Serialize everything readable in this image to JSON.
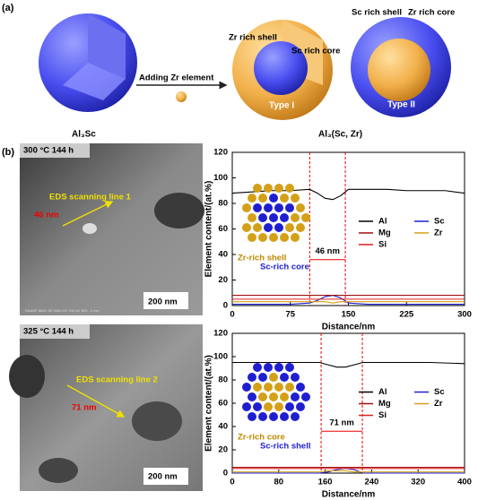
{
  "panel_a": {
    "label": "(a)",
    "left_caption": "Al₃Sc",
    "right_caption": "Al₃(Sc, Zr)",
    "arrow_text": "Adding Zr element",
    "type1": {
      "name": "Type I",
      "shell": "Zr rich shell",
      "core": "Sc rich core"
    },
    "type2": {
      "name": "Type II",
      "shell": "Sc rich shell",
      "core": "Zr rich core"
    }
  },
  "panel_b": {
    "label": "(b)",
    "images": [
      {
        "title": "300 °C 144 h",
        "line_label": "EDS scanning line 1",
        "size_label": "46 nm",
        "scale_bar": "200 nm",
        "footer": "HAADF MAG: 80 000x HV: 200 kV WD: -1 mm"
      },
      {
        "title": "325 °C 144 h",
        "line_label": "EDS scanning line 2",
        "size_label": "71 nm",
        "scale_bar": "200 nm"
      }
    ]
  },
  "chart_data": [
    {
      "type": "line",
      "xlabel": "Distance/nm",
      "ylabel": "Element content/(at.%)",
      "xlim": [
        0,
        300
      ],
      "xticks": [
        0,
        75,
        150,
        225,
        300
      ],
      "ylim": [
        0,
        120
      ],
      "yticks": [
        0,
        20,
        40,
        60,
        80,
        100,
        120
      ],
      "x": [
        0,
        25,
        50,
        75,
        100,
        110,
        120,
        130,
        140,
        150,
        175,
        200,
        225,
        250,
        275,
        300
      ],
      "series": [
        {
          "name": "Al",
          "color": "#000000",
          "values": [
            88,
            89,
            90,
            90,
            91,
            88,
            84,
            83,
            86,
            91,
            91,
            91,
            90,
            90,
            90,
            88
          ]
        },
        {
          "name": "Sc",
          "color": "#1f1fd0",
          "values": [
            1,
            1,
            1,
            1,
            2,
            4,
            7,
            8,
            6,
            2,
            1,
            1,
            1,
            1,
            1,
            1
          ]
        },
        {
          "name": "Mg",
          "color": "#a01010",
          "values": [
            8,
            8,
            8,
            8,
            8,
            8,
            8,
            8,
            8,
            8,
            8,
            8,
            8,
            8,
            8,
            8
          ]
        },
        {
          "name": "Zr",
          "color": "#d4a017",
          "values": [
            3,
            3,
            3,
            3,
            3,
            3,
            3,
            2,
            3,
            3,
            3,
            3,
            3,
            3,
            3,
            3
          ]
        },
        {
          "name": "Si",
          "color": "#e02020",
          "values": [
            5,
            5,
            5,
            5,
            5,
            5,
            5,
            5,
            5,
            5,
            5,
            5,
            5,
            5,
            5,
            5
          ]
        }
      ],
      "span": [
        100,
        146
      ],
      "span_label": "46 nm",
      "inset": {
        "outer_label": "Zr-rich shell",
        "inner_label": "Sc-rich core"
      }
    },
    {
      "type": "line",
      "xlabel": "Distance/nm",
      "ylabel": "Element content/(at.%)",
      "xlim": [
        0,
        400
      ],
      "xticks": [
        0,
        80,
        160,
        240,
        320,
        400
      ],
      "ylim": [
        0,
        120
      ],
      "yticks": [
        0,
        20,
        40,
        60,
        80,
        100,
        120
      ],
      "x": [
        0,
        40,
        80,
        120,
        150,
        165,
        180,
        195,
        210,
        225,
        260,
        300,
        340,
        400
      ],
      "series": [
        {
          "name": "Al",
          "color": "#000000",
          "values": [
            95,
            95,
            95,
            95,
            95,
            93,
            91,
            91,
            93,
            95,
            95,
            95,
            95,
            94
          ]
        },
        {
          "name": "Sc",
          "color": "#1f1fd0",
          "values": [
            0,
            0,
            0,
            0,
            0,
            1,
            3,
            4,
            3,
            0,
            0,
            0,
            0,
            0
          ]
        },
        {
          "name": "Mg",
          "color": "#a01010",
          "values": [
            5,
            5,
            5,
            5,
            5,
            5,
            5,
            5,
            5,
            5,
            5,
            5,
            5,
            5
          ]
        },
        {
          "name": "Zr",
          "color": "#d4a017",
          "values": [
            1,
            1,
            1,
            1,
            1,
            2,
            2,
            2,
            1,
            1,
            1,
            1,
            1,
            1
          ]
        },
        {
          "name": "Si",
          "color": "#e02020",
          "values": [
            4,
            4,
            4,
            4,
            4,
            4,
            4,
            4,
            4,
            4,
            4,
            4,
            4,
            4
          ]
        }
      ],
      "span": [
        153,
        224
      ],
      "span_label": "71 nm",
      "inset": {
        "outer_label": "Zr-rich core",
        "inner_label": "Sc-rich shell"
      }
    }
  ]
}
